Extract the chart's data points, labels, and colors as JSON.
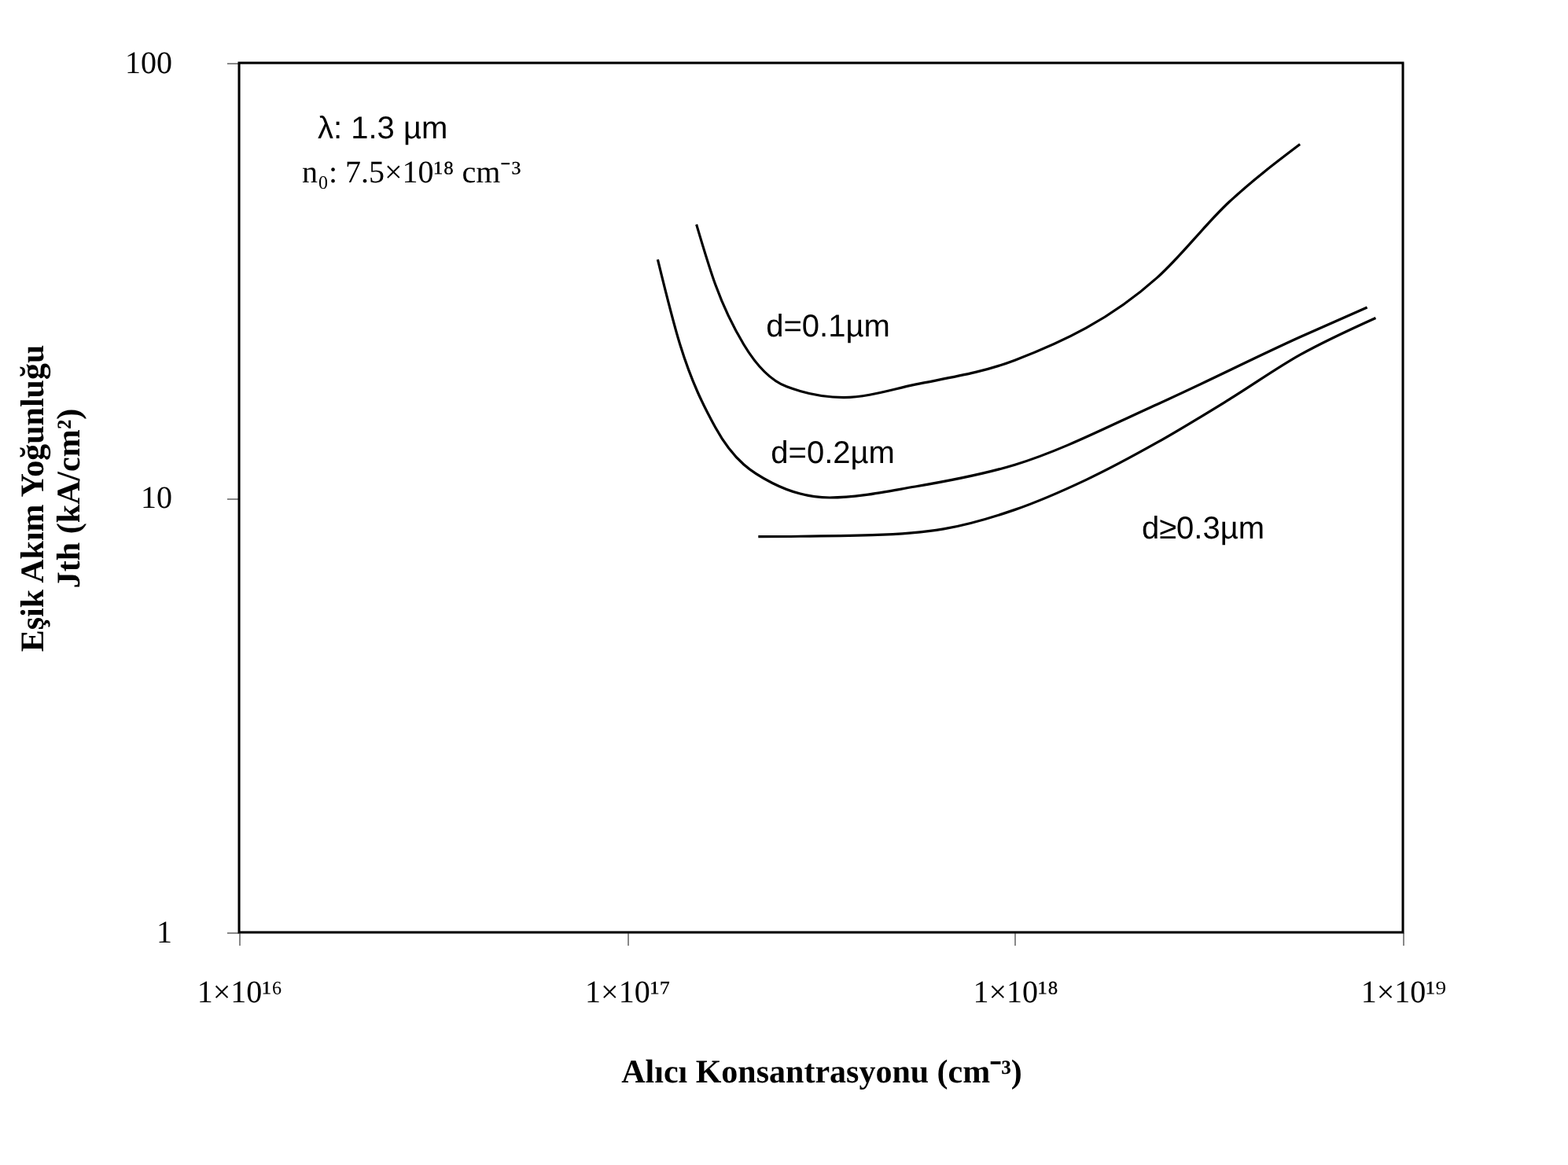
{
  "chart_data": {
    "type": "line",
    "xlabel": "Alıcı Konsantrasyonu (cm⁻³)",
    "ylabel": [
      "Eşik Akım Yoğunluğu",
      "Jth (kA/cm²)"
    ],
    "annotations": [
      "λ: 1.3 µm",
      "n₀: 7.5×10¹⁸ cm⁻³"
    ],
    "log": "xy",
    "grid": false,
    "line_style": "solid",
    "marker": "none",
    "xlim": [
      1e+16,
      1e+19
    ],
    "xticks": [
      {
        "value": 1e+16,
        "label": "1×10¹⁶"
      },
      {
        "value": 1e+17,
        "label": "1×10¹⁷"
      },
      {
        "value": 1e+18,
        "label": "1×10¹⁸"
      },
      {
        "value": 1e+19,
        "label": "1×10¹⁹"
      }
    ],
    "ylim": [
      1,
      100
    ],
    "yticks": [
      1,
      10,
      100
    ],
    "series": [
      {
        "name": "d=0.1µm",
        "color": "#000000",
        "x": [
          1.51e+17,
          1.69e+17,
          2e+17,
          2.58e+17,
          3.62e+17,
          5.53e+17,
          1e+18,
          2.33e+18,
          3.56e+18,
          5.43e+18
        ],
        "values": [
          42.5,
          30.9,
          22.5,
          18.0,
          17.0,
          18.2,
          20.7,
          32.1,
          47.8,
          65
        ]
      },
      {
        "name": "d=0.2µm",
        "color": "#000000",
        "x": [
          1.2e+17,
          1.37e+17,
          1.69e+17,
          2.37e+17,
          3.33e+17,
          5.53e+17,
          1e+18,
          2.33e+18,
          5.43e+18,
          8.09e+18
        ],
        "values": [
          35.3,
          22.5,
          14.5,
          10.8,
          10.0,
          10.6,
          11.9,
          16.4,
          23.4,
          27.4
        ]
      },
      {
        "name": "d≥0.3µm",
        "color": "#000000",
        "x": [
          2.18e+17,
          4.29e+17,
          6.55e+17,
          1e+18,
          1.53e+18,
          2.33e+18,
          3.56e+18,
          5.43e+18,
          8.51e+18
        ],
        "values": [
          8.13,
          8.2,
          8.47,
          9.38,
          11.0,
          13.4,
          16.8,
          21.3,
          25.9
        ]
      }
    ]
  }
}
